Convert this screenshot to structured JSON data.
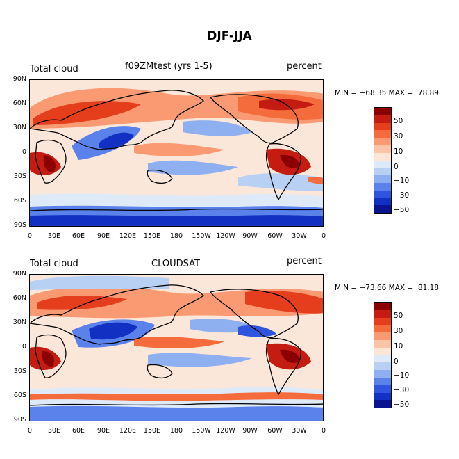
{
  "title": "DJF-JJA",
  "panels": [
    {
      "left": "Total cloud",
      "center": "f09ZMtest (yrs 1-5)",
      "right": "percent",
      "minmax": "MIN = −68.35 MAX =  78.89"
    },
    {
      "left": "Total cloud",
      "center": "CLOUDSAT",
      "right": "percent",
      "minmax": "MIN = −73.66 MAX =  81.18"
    }
  ],
  "lat_labels": [
    "90N",
    "60N",
    "30N",
    "0",
    "30S",
    "60S",
    "90S"
  ],
  "lon_labels": [
    "0",
    "30E",
    "60E",
    "90E",
    "120E",
    "150E",
    "180",
    "150W",
    "120W",
    "90W",
    "60W",
    "30W",
    "0"
  ],
  "colorbar": {
    "labels": [
      "50",
      "30",
      "10",
      "0",
      "−10",
      "−30",
      "−50"
    ],
    "colors": [
      "#8b0000",
      "#c41c10",
      "#e43e1c",
      "#f56c3c",
      "#f99a72",
      "#fbc4a6",
      "#fde6d6",
      "#dfeaf8",
      "#b8d0f4",
      "#8fb0f0",
      "#5a82ea",
      "#2f55de",
      "#1230c2",
      "#0a1490"
    ]
  }
}
